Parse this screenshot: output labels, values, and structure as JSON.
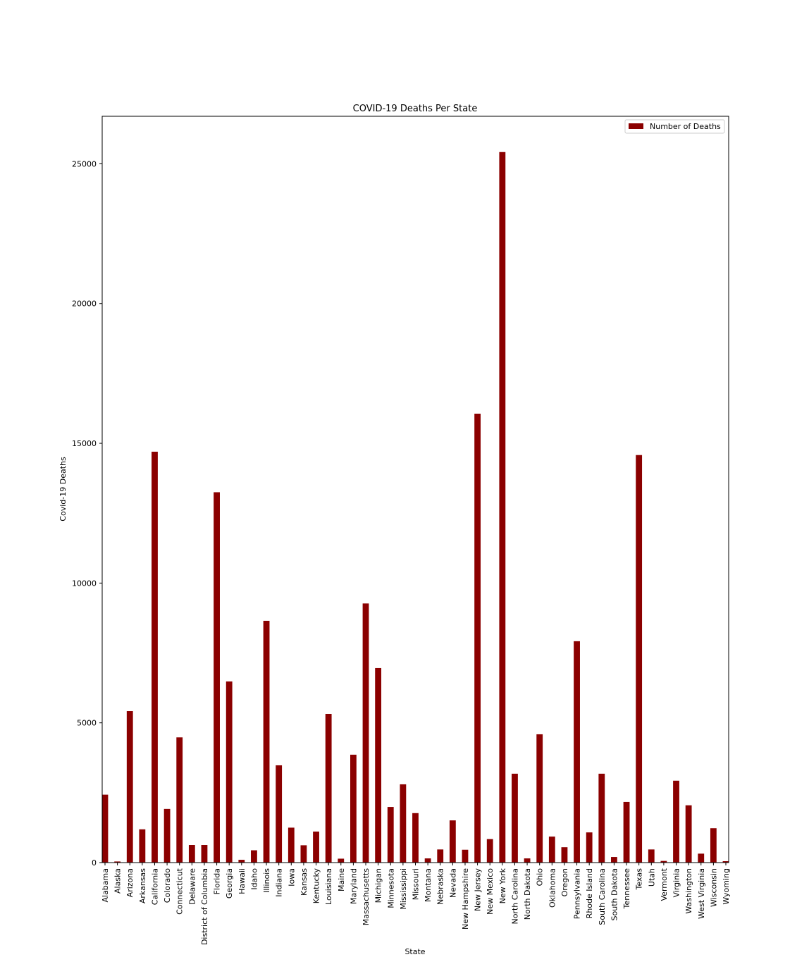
{
  "chart_data": {
    "type": "bar",
    "title": "COVID-19 Deaths Per State",
    "xlabel": "State",
    "ylabel": "Covid-19 Deaths",
    "ylim": [
      0,
      26700
    ],
    "yticks": [
      0,
      5000,
      10000,
      15000,
      20000,
      25000
    ],
    "grid": false,
    "legend_position": "top-right",
    "bar_color": "#8b0000",
    "categories": [
      "Alabama",
      "Alaska",
      "Arizona",
      "Arkansas",
      "California",
      "Colorado",
      "Connecticut",
      "Delaware",
      "District of Columbia",
      "Florida",
      "Georgia",
      "Hawaii",
      "Idaho",
      "Illinois",
      "Indiana",
      "Iowa",
      "Kansas",
      "Kentucky",
      "Louisiana",
      "Maine",
      "Maryland",
      "Massachusetts",
      "Michigan",
      "Minnesota",
      "Mississippi",
      "Missouri",
      "Montana",
      "Nebraska",
      "Nevada",
      "New Hampshire",
      "New Jersey",
      "New Mexico",
      "New York",
      "North Carolina",
      "North Dakota",
      "Ohio",
      "Oklahoma",
      "Oregon",
      "Pennsylvania",
      "Rhode Island",
      "South Carolina",
      "South Dakota",
      "Tennessee",
      "Texas",
      "Utah",
      "Vermont",
      "Virginia",
      "Washington",
      "West Virginia",
      "Wisconsin",
      "Wyoming"
    ],
    "series": [
      {
        "name": "Number of Deaths",
        "values": [
          2430,
          40,
          5420,
          1190,
          14700,
          1920,
          4480,
          630,
          630,
          13250,
          6480,
          100,
          440,
          8650,
          3480,
          1250,
          620,
          1110,
          5320,
          140,
          3860,
          9270,
          6960,
          1990,
          2800,
          1770,
          150,
          470,
          1510,
          460,
          16060,
          840,
          25420,
          3180,
          150,
          4590,
          930,
          550,
          7920,
          1080,
          3180,
          200,
          2170,
          14580,
          470,
          60,
          2930,
          2050,
          320,
          1230,
          50
        ]
      }
    ]
  }
}
